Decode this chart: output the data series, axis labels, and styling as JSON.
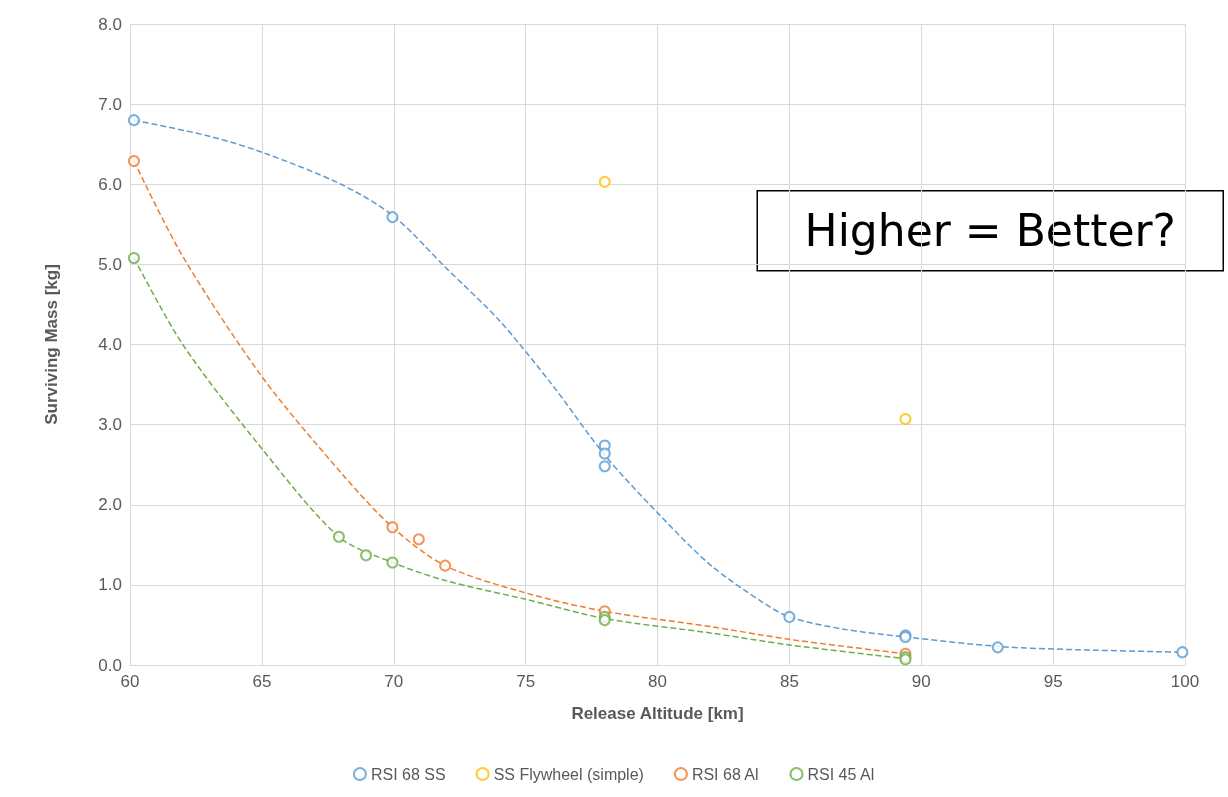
{
  "chart_data": {
    "type": "scatter",
    "xlabel": "Release Altitude [km]",
    "ylabel": "Surviving Mass [kg]",
    "xlim": [
      60,
      100
    ],
    "xticks": [
      60,
      65,
      70,
      75,
      80,
      85,
      90,
      95,
      100
    ],
    "ylim": [
      0,
      8
    ],
    "yticks": [
      {
        "value": 0,
        "label": "0.0"
      },
      {
        "value": 1,
        "label": "1.0"
      },
      {
        "value": 2,
        "label": "2.0"
      },
      {
        "value": 3,
        "label": "3.0"
      },
      {
        "value": 4,
        "label": "4.0"
      },
      {
        "value": 5,
        "label": "5.0"
      },
      {
        "value": 6,
        "label": "6.0"
      },
      {
        "value": 7,
        "label": "7.0"
      },
      {
        "value": 8,
        "label": "8.0"
      }
    ],
    "grid": true,
    "legend": "bottom",
    "marker": "circle",
    "annotations": [
      "Higher = Better?"
    ],
    "series": [
      {
        "name": "RSI 68 SS",
        "color": "#5b9bd5",
        "x": [
          60.15,
          69.95,
          78,
          78,
          78,
          85,
          89.4,
          89.4,
          92.9,
          99.9
        ],
        "values": [
          6.8,
          5.59,
          2.74,
          2.64,
          2.48,
          0.6,
          0.37,
          0.35,
          0.22,
          0.16
        ]
      },
      {
        "name": "SS Flywheel (simple)",
        "color": "#ffc000",
        "x": [
          78,
          89.4
        ],
        "values": [
          6.03,
          3.07
        ]
      },
      {
        "name": "RSI 68 Al",
        "color": "#ed7d31",
        "x": [
          60.15,
          69.95,
          70.95,
          71.95,
          78,
          89.4
        ],
        "values": [
          6.29,
          1.72,
          1.57,
          1.24,
          0.67,
          0.14
        ]
      },
      {
        "name": "RSI 45 Al",
        "color": "#70ad47",
        "x": [
          60.15,
          67.92,
          68.95,
          69.95,
          78,
          78,
          89.4,
          89.4
        ],
        "values": [
          5.08,
          1.6,
          1.37,
          1.28,
          0.6,
          0.56,
          0.1,
          0.07
        ]
      },
      {
        "type": "line",
        "color": "#5b9bd5",
        "marker": "none",
        "line_style": "dashed",
        "x": [
          60.15,
          63,
          65,
          68,
          70,
          72,
          74,
          76,
          78,
          80,
          82,
          84,
          85,
          87,
          89.4,
          93,
          96,
          99.9
        ],
        "values": [
          6.8,
          6.6,
          6.4,
          6.0,
          5.6,
          4.95,
          4.3,
          3.5,
          2.62,
          1.9,
          1.25,
          0.78,
          0.6,
          0.45,
          0.35,
          0.23,
          0.19,
          0.16
        ]
      },
      {
        "type": "line",
        "color": "#ed7d31",
        "marker": "none",
        "line_style": "dashed",
        "x": [
          60.15,
          62,
          65,
          68,
          69.95,
          71.95,
          75,
          78,
          82,
          85,
          89.4
        ],
        "values": [
          6.29,
          5.1,
          3.6,
          2.4,
          1.72,
          1.24,
          0.9,
          0.67,
          0.48,
          0.32,
          0.14
        ]
      },
      {
        "type": "line",
        "color": "#70ad47",
        "marker": "none",
        "line_style": "dashed",
        "x": [
          60.15,
          62,
          65,
          67.92,
          69.95,
          72,
          75,
          78,
          82,
          85,
          89.4
        ],
        "values": [
          5.08,
          4.0,
          2.7,
          1.6,
          1.28,
          1.05,
          0.82,
          0.58,
          0.4,
          0.25,
          0.08
        ]
      }
    ]
  }
}
